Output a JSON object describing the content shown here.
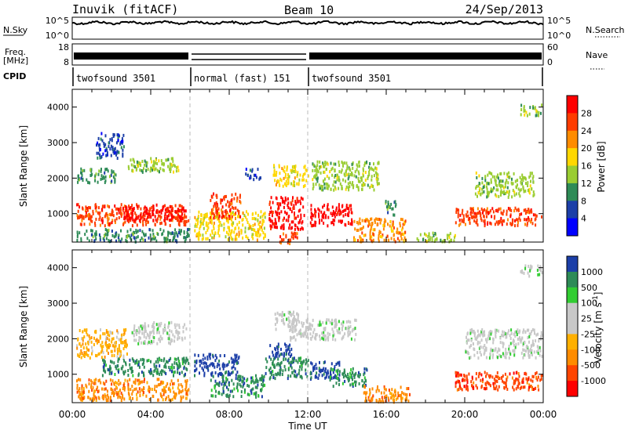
{
  "header": {
    "title_left": "Inuvik (fitACF)",
    "title_center": "Beam 10",
    "title_right": "24/Sep/2013"
  },
  "strips": {
    "nsky_label": "N.Sky",
    "nsky_ticks": [
      "10^5",
      "10^0"
    ],
    "nsearch_label": "N.Search",
    "nsearch_ticks": [
      "10^5",
      "10^0"
    ],
    "freq_label": "Freq.",
    "freq_unit": "[MHz]",
    "freq_ticks": [
      "18",
      "8"
    ],
    "nave_label": "Nave",
    "nave_ticks": [
      "60",
      "0"
    ],
    "cpid_label": "CPID",
    "cpid_segments": [
      {
        "label": "twofsound 3501",
        "start_h": 0,
        "end_h": 6
      },
      {
        "label": "normal (fast) 151",
        "start_h": 6,
        "end_h": 12
      },
      {
        "label": "twofsound 3501",
        "start_h": 12,
        "end_h": 24
      }
    ]
  },
  "chart_data": [
    {
      "type": "heatmap",
      "name": "power",
      "xlabel": "",
      "ylabel": "Slant Range [km]",
      "x_range_hours": [
        0,
        24
      ],
      "ylim": [
        200,
        4500
      ],
      "yticks": [
        1000,
        2000,
        3000,
        4000
      ],
      "colorbar": {
        "label": "Power [dB]",
        "tick_labels": [
          "28",
          "24",
          "20",
          "16",
          "12",
          "8",
          "4"
        ],
        "colors": [
          "#ff0000",
          "#ff3c00",
          "#ff8c00",
          "#ffd700",
          "#9acd32",
          "#2e8b57",
          "#1c3fa8",
          "#0000ff"
        ]
      },
      "regions": [
        {
          "x0": 0.2,
          "x1": 5.9,
          "y0": 700,
          "y1": 1300,
          "c": 1
        },
        {
          "x0": 2.5,
          "x1": 5.8,
          "y0": 850,
          "y1": 1250,
          "c": 0
        },
        {
          "x0": 0.2,
          "x1": 2.2,
          "y0": 1900,
          "y1": 2300,
          "c": 5
        },
        {
          "x0": 2.8,
          "x1": 5.6,
          "y0": 2200,
          "y1": 2600,
          "c": 4
        },
        {
          "x0": 1.2,
          "x1": 2.6,
          "y0": 2600,
          "y1": 3300,
          "c": 6
        },
        {
          "x0": 0.2,
          "x1": 6.0,
          "y0": 250,
          "y1": 600,
          "c": 5
        },
        {
          "x0": 6.2,
          "x1": 9.8,
          "y0": 300,
          "y1": 1100,
          "c": 3
        },
        {
          "x0": 7.0,
          "x1": 8.6,
          "y0": 900,
          "y1": 1600,
          "c": 1
        },
        {
          "x0": 8.8,
          "x1": 9.6,
          "y0": 2000,
          "y1": 2300,
          "c": 6
        },
        {
          "x0": 10.0,
          "x1": 11.8,
          "y0": 600,
          "y1": 1500,
          "c": 0
        },
        {
          "x0": 10.2,
          "x1": 12.0,
          "y0": 1800,
          "y1": 2400,
          "c": 3
        },
        {
          "x0": 10.5,
          "x1": 11.5,
          "y0": 200,
          "y1": 500,
          "c": 1
        },
        {
          "x0": 12.1,
          "x1": 14.3,
          "y0": 700,
          "y1": 1300,
          "c": 0
        },
        {
          "x0": 12.2,
          "x1": 15.6,
          "y0": 1700,
          "y1": 2500,
          "c": 4
        },
        {
          "x0": 14.3,
          "x1": 17.0,
          "y0": 250,
          "y1": 900,
          "c": 2
        },
        {
          "x0": 15.8,
          "x1": 16.5,
          "y0": 1000,
          "y1": 1400,
          "c": 5
        },
        {
          "x0": 19.5,
          "x1": 23.9,
          "y0": 700,
          "y1": 1200,
          "c": 1
        },
        {
          "x0": 20.5,
          "x1": 23.5,
          "y0": 1500,
          "y1": 2200,
          "c": 4
        },
        {
          "x0": 22.8,
          "x1": 23.9,
          "y0": 3800,
          "y1": 4100,
          "c": 4
        },
        {
          "x0": 17.5,
          "x1": 19.5,
          "y0": 250,
          "y1": 500,
          "c": 4
        }
      ]
    },
    {
      "type": "heatmap",
      "name": "velocity",
      "xlabel": "Time UT",
      "ylabel": "Slant Range [km]",
      "x_range_hours": [
        0,
        24
      ],
      "xtick_labels": [
        "00:00",
        "04:00",
        "08:00",
        "12:00",
        "16:00",
        "20:00",
        "00:00"
      ],
      "ylim": [
        200,
        4500
      ],
      "yticks": [
        1000,
        2000,
        3000,
        4000
      ],
      "colorbar": {
        "label": "Velocity [m s-1]",
        "tick_labels": [
          "1000",
          "500",
          "100",
          "25",
          "-25",
          "-100",
          "-500",
          "-1000"
        ],
        "colors": [
          "#1c3fa8",
          "#2e8b57",
          "#32cd32",
          "#c8c8c8",
          "#c8c8c8",
          "#ffb000",
          "#ff8c00",
          "#ff4500",
          "#ff0000"
        ]
      },
      "regions": [
        {
          "x0": 0.2,
          "x1": 5.9,
          "y0": 300,
          "y1": 900,
          "c": 6
        },
        {
          "x0": 1.5,
          "x1": 5.9,
          "y0": 1000,
          "y1": 1500,
          "c": 1
        },
        {
          "x0": 0.2,
          "x1": 2.8,
          "y0": 1500,
          "y1": 2300,
          "c": 5
        },
        {
          "x0": 3.0,
          "x1": 5.8,
          "y0": 1900,
          "y1": 2500,
          "c": 3
        },
        {
          "x0": 6.2,
          "x1": 8.5,
          "y0": 1000,
          "y1": 1600,
          "c": 0
        },
        {
          "x0": 7.0,
          "x1": 9.8,
          "y0": 400,
          "y1": 1000,
          "c": 1
        },
        {
          "x0": 9.8,
          "x1": 12.0,
          "y0": 900,
          "y1": 1500,
          "c": 1
        },
        {
          "x0": 10.0,
          "x1": 11.2,
          "y0": 1500,
          "y1": 1900,
          "c": 0
        },
        {
          "x0": 11.0,
          "x1": 14.5,
          "y0": 2000,
          "y1": 2600,
          "c": 3
        },
        {
          "x0": 12.1,
          "x1": 13.6,
          "y0": 900,
          "y1": 1400,
          "c": 0
        },
        {
          "x0": 13.0,
          "x1": 15.0,
          "y0": 700,
          "y1": 1200,
          "c": 1
        },
        {
          "x0": 14.8,
          "x1": 17.2,
          "y0": 250,
          "y1": 700,
          "c": 6
        },
        {
          "x0": 19.5,
          "x1": 23.9,
          "y0": 600,
          "y1": 1100,
          "c": 7
        },
        {
          "x0": 20.0,
          "x1": 23.9,
          "y0": 1500,
          "y1": 2300,
          "c": 3
        },
        {
          "x0": 22.8,
          "x1": 23.9,
          "y0": 3800,
          "y1": 4100,
          "c": 3
        },
        {
          "x0": 10.3,
          "x1": 11.5,
          "y0": 2300,
          "y1": 2800,
          "c": 3
        }
      ]
    }
  ]
}
